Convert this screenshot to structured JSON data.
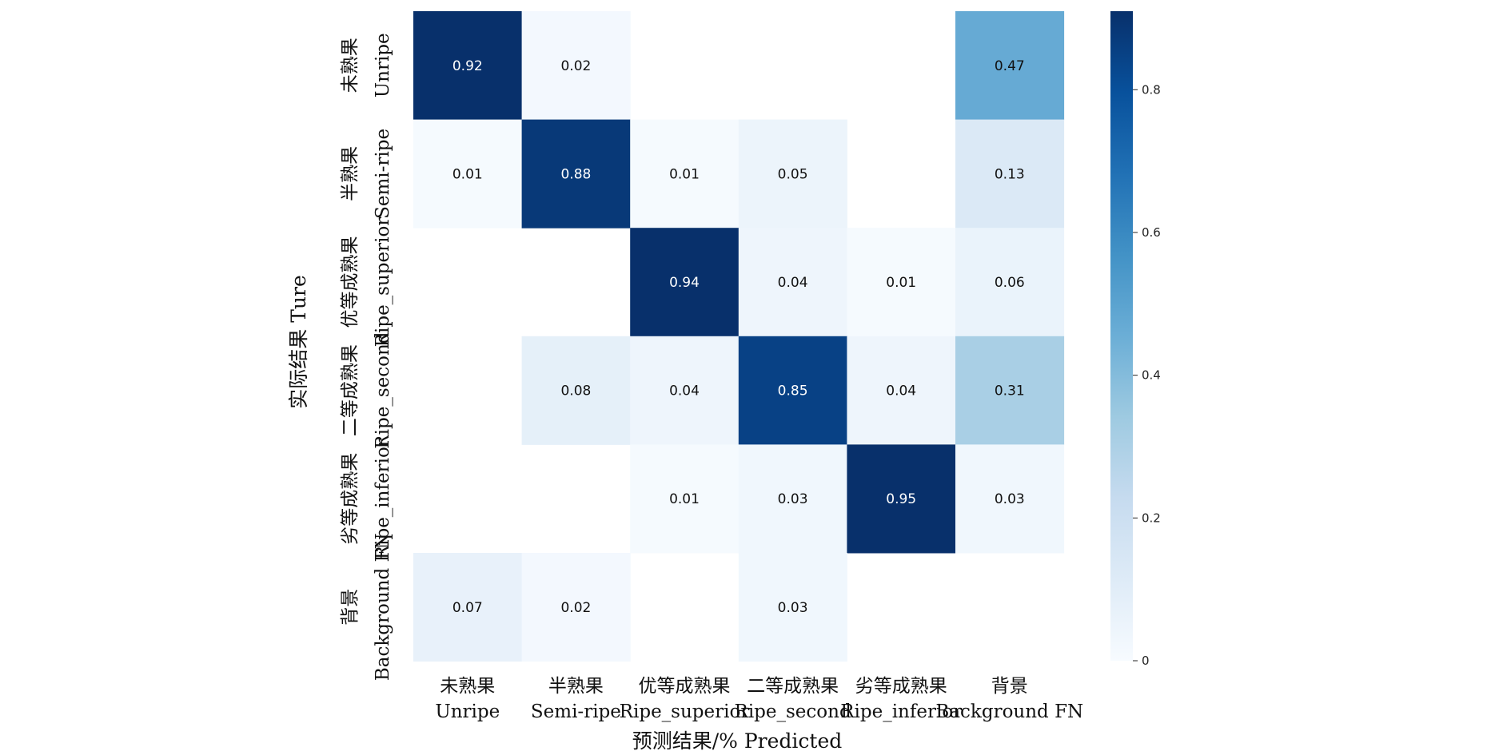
{
  "chart_data": {
    "type": "heatmap",
    "title": "",
    "xlabel": "预测结果/%  Predicted",
    "ylabel": "实际结果 Ture",
    "x_categories": [
      {
        "zh": "未熟果",
        "en": "Unripe"
      },
      {
        "zh": "半熟果",
        "en": "Semi-ripe"
      },
      {
        "zh": "优等成熟果",
        "en": "Ripe_superior"
      },
      {
        "zh": "二等成熟果",
        "en": "Ripe_second"
      },
      {
        "zh": "劣等成熟果",
        "en": "Ripe_inferior"
      },
      {
        "zh": "背景",
        "en": "Background FN"
      }
    ],
    "y_categories": [
      {
        "zh": "未熟果",
        "en": "Unripe"
      },
      {
        "zh": "半熟果",
        "en": "Semi-ripe"
      },
      {
        "zh": "优等成熟果",
        "en": "Ripe_superior"
      },
      {
        "zh": "二等成熟果",
        "en": "Ripe_second"
      },
      {
        "zh": "劣等成熟果",
        "en": "Ripe_inferior"
      },
      {
        "zh": "背景",
        "en": "Background FN"
      }
    ],
    "values": [
      [
        0.92,
        0.02,
        null,
        null,
        null,
        0.47
      ],
      [
        0.01,
        0.88,
        0.01,
        0.05,
        null,
        0.13
      ],
      [
        null,
        null,
        0.94,
        0.04,
        0.01,
        0.06
      ],
      [
        null,
        0.08,
        0.04,
        0.85,
        0.04,
        0.31
      ],
      [
        null,
        null,
        0.01,
        0.03,
        0.95,
        0.03
      ],
      [
        0.07,
        0.02,
        null,
        0.03,
        null,
        null
      ]
    ],
    "colorbar": {
      "ticks": [
        0,
        0.2,
        0.4,
        0.6,
        0.8
      ],
      "tick_labels": [
        "0",
        "0.2",
        "0.4",
        "0.6",
        "0.8"
      ],
      "range": [
        0,
        0.91
      ]
    },
    "colormap": "Blues",
    "grid": false,
    "legend": "colorbar-right"
  }
}
